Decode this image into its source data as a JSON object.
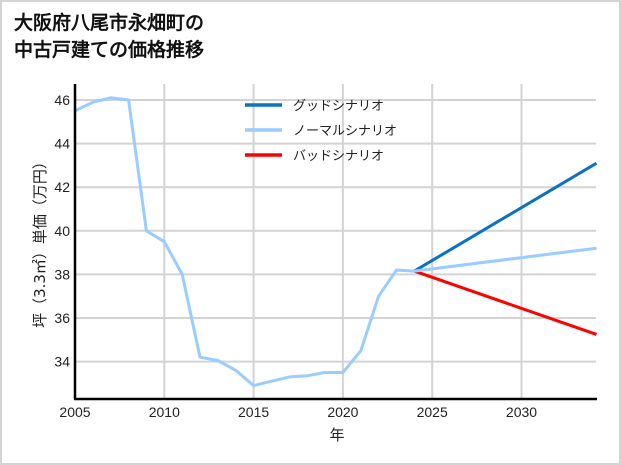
{
  "title": {
    "line1": "大阪府八尾市永畑町の",
    "line2": "中古戸建ての価格推移"
  },
  "chart_data": {
    "type": "line",
    "title": "大阪府八尾市永畑町の中古戸建ての価格推移",
    "xlabel": "年",
    "ylabel": "坪（3.3㎡）単価（万円）",
    "xlim": [
      2005,
      2034.2
    ],
    "ylim": [
      32.3,
      46.8
    ],
    "xticks": [
      2005,
      2010,
      2015,
      2020,
      2025,
      2030
    ],
    "yticks": [
      34,
      36,
      38,
      40,
      42,
      44,
      46
    ],
    "grid": true,
    "legend_position": "upper center",
    "series": [
      {
        "name": "ノーマルシナリオ",
        "color": "#99ccff",
        "x": [
          2005,
          2006,
          2007,
          2008,
          2009,
          2010,
          2011,
          2012,
          2013,
          2014,
          2015,
          2016,
          2017,
          2018,
          2019,
          2020,
          2021,
          2022,
          2023,
          2024,
          2034.2
        ],
        "y": [
          45.5,
          45.9,
          46.1,
          46.0,
          40.0,
          39.5,
          38.0,
          34.2,
          34.05,
          33.6,
          32.9,
          33.1,
          33.3,
          33.35,
          33.5,
          33.5,
          34.5,
          37.0,
          38.2,
          38.15,
          39.2
        ]
      },
      {
        "name": "グッドシナリオ",
        "color": "#0a72c4",
        "x": [
          2024,
          2034.2
        ],
        "y": [
          38.15,
          43.1
        ]
      },
      {
        "name": "バッドシナリオ",
        "color": "#ff0000",
        "x": [
          2024,
          2034.2
        ],
        "y": [
          38.15,
          35.25
        ]
      }
    ]
  },
  "legend": {
    "items": [
      {
        "label": "グッドシナリオ",
        "color": "#0a72c4"
      },
      {
        "label": "ノーマルシナリオ",
        "color": "#99ccff"
      },
      {
        "label": "バッドシナリオ",
        "color": "#ff0000"
      }
    ]
  },
  "axes": {
    "xlabel": "年",
    "ylabel": "坪（3.3㎡）単価（万円）",
    "xtick_labels": [
      "2005",
      "2010",
      "2015",
      "2020",
      "2025",
      "2030"
    ],
    "ytick_labels": [
      "34",
      "36",
      "38",
      "40",
      "42",
      "44",
      "46"
    ]
  }
}
